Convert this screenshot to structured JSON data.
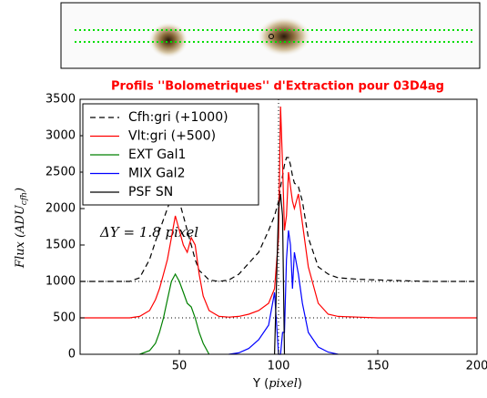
{
  "chart_data": {
    "type": "line",
    "title": "Profils ''Bolometriques'' d'Extraction pour 03D4ag",
    "xlabel": [
      "Y (",
      "pixel",
      ")"
    ],
    "ylabel": [
      "Flux (",
      "ADU",
      "cfh",
      ")"
    ],
    "annotation": [
      "ΔY = 1.8 ",
      "pixel"
    ],
    "x": [
      0,
      10,
      20,
      25,
      30,
      35,
      38,
      40,
      42,
      44,
      46,
      48,
      50,
      52,
      54,
      56,
      58,
      60,
      62,
      65,
      70,
      75,
      80,
      85,
      90,
      95,
      98,
      100,
      101,
      102,
      103,
      104,
      105,
      106,
      107,
      108,
      110,
      112,
      115,
      120,
      125,
      130,
      140,
      150,
      175,
      200
    ],
    "series": [
      {
        "name": "Cfh:gri (+1000)",
        "color": "#000000",
        "dash": true,
        "values": [
          1000,
          1000,
          1000,
          1000,
          1050,
          1300,
          1550,
          1700,
          1850,
          2000,
          2150,
          2250,
          2100,
          1900,
          1700,
          1500,
          1300,
          1150,
          1100,
          1020,
          1000,
          1020,
          1100,
          1250,
          1400,
          1700,
          1900,
          2100,
          2300,
          2450,
          2600,
          2700,
          2700,
          2600,
          2450,
          2350,
          2300,
          2100,
          1600,
          1200,
          1100,
          1050,
          1030,
          1020,
          1000,
          1000
        ]
      },
      {
        "name": "Vlt:gri (+500)",
        "color": "#ff0000",
        "dash": false,
        "values": [
          500,
          500,
          500,
          500,
          520,
          600,
          750,
          900,
          1100,
          1300,
          1600,
          1900,
          1700,
          1500,
          1400,
          1600,
          1500,
          1100,
          800,
          600,
          520,
          510,
          520,
          550,
          600,
          700,
          900,
          1600,
          3400,
          2600,
          1700,
          1900,
          2500,
          2300,
          2100,
          2000,
          2200,
          1800,
          1200,
          700,
          550,
          520,
          510,
          500,
          500,
          500
        ]
      },
      {
        "name": "EXT Gal1",
        "color": "#008000",
        "dash": false,
        "values": [
          null,
          null,
          null,
          null,
          0,
          50,
          150,
          300,
          500,
          750,
          1000,
          1100,
          1000,
          850,
          700,
          650,
          500,
          300,
          150,
          0,
          null,
          null,
          null,
          null,
          null,
          null,
          null,
          null,
          null,
          null,
          null,
          null,
          null,
          null,
          null,
          null,
          null,
          null,
          null,
          null,
          null,
          null,
          null,
          null,
          null,
          null
        ]
      },
      {
        "name": "MIX Gal2",
        "color": "#0000ff",
        "dash": false,
        "values": [
          null,
          null,
          null,
          null,
          null,
          null,
          null,
          null,
          null,
          null,
          null,
          null,
          null,
          null,
          null,
          null,
          null,
          null,
          null,
          null,
          null,
          0,
          20,
          80,
          200,
          400,
          850,
          0,
          0,
          300,
          300,
          1300,
          1700,
          1500,
          900,
          1400,
          1100,
          700,
          300,
          100,
          30,
          0,
          null,
          null,
          null,
          null
        ]
      },
      {
        "name": "PSF SN",
        "color": "#000000",
        "dash": false,
        "values": [
          null,
          null,
          null,
          null,
          null,
          null,
          null,
          null,
          null,
          null,
          null,
          null,
          null,
          null,
          null,
          null,
          null,
          null,
          null,
          null,
          null,
          null,
          null,
          null,
          null,
          null,
          0,
          2000,
          2200,
          1900,
          0,
          null,
          null,
          null,
          null,
          null,
          null,
          null,
          null,
          null,
          null,
          null,
          null,
          null,
          null,
          null
        ]
      }
    ],
    "hlines": [
      500,
      1000
    ],
    "vlines": [
      100
    ],
    "xlim": [
      0,
      200
    ],
    "xticks": [
      50,
      100,
      150,
      200
    ],
    "ylim": [
      0,
      3500
    ],
    "yticks": [
      0,
      500,
      1000,
      1500,
      2000,
      2500,
      3000,
      3500
    ],
    "grid": false,
    "legend": "upper left"
  }
}
